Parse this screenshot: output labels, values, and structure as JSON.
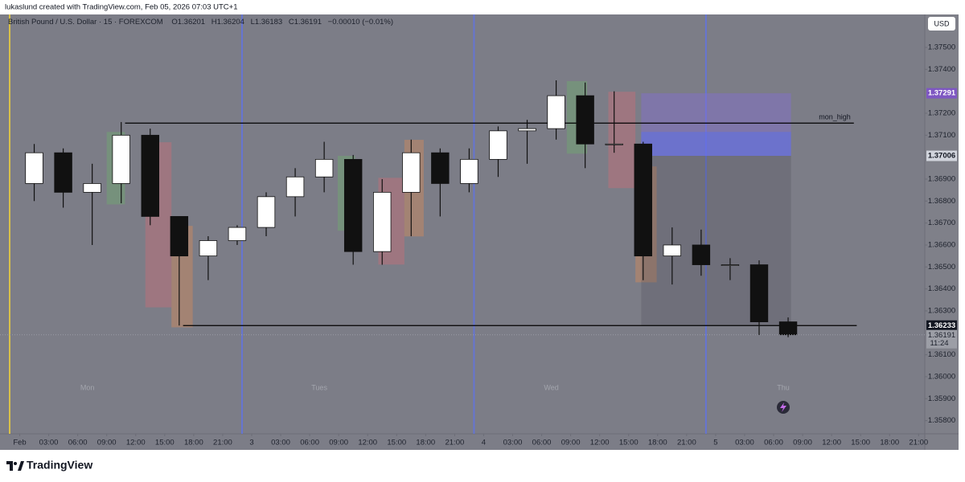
{
  "header": {
    "credit": "lukaslund created with TradingView.com, Feb 05, 2026 07:03 UTC+1"
  },
  "footer": {
    "brand": "TradingView"
  },
  "chart_data": {
    "type": "candlestick",
    "title": "British Pound / U.S. Dollar · 15 · FOREXCOM",
    "legend_values": [
      "O1.36201",
      "H1.36204",
      "L1.36183",
      "C1.36191",
      "−0.00010 (−0.01%)"
    ],
    "currency": "USD",
    "x": [
      0,
      3,
      6,
      9,
      12,
      15,
      18,
      21,
      24,
      27,
      30,
      33,
      36,
      39,
      42,
      45,
      48,
      51,
      54,
      57,
      60,
      63,
      66,
      69,
      72,
      75,
      78
    ],
    "open": [
      1.3688,
      1.3702,
      1.3684,
      1.3688,
      1.371,
      1.3673,
      1.3655,
      1.3662,
      1.3668,
      1.3682,
      1.3691,
      1.3699,
      1.3657,
      1.3684,
      1.3702,
      1.3688,
      1.3699,
      1.3712,
      1.3713,
      1.3728,
      1.3706,
      1.3706,
      1.3655,
      1.366,
      1.3651,
      1.3651,
      1.3625
    ],
    "high": [
      1.3706,
      1.3704,
      1.3697,
      1.3716,
      1.3713,
      1.3673,
      1.3664,
      1.3669,
      1.3684,
      1.3695,
      1.3707,
      1.3701,
      1.369,
      1.3708,
      1.3704,
      1.3704,
      1.3714,
      1.3717,
      1.3735,
      1.3734,
      1.373,
      1.3707,
      1.3668,
      1.3667,
      1.3654,
      1.3653,
      1.3627
    ],
    "low": [
      1.368,
      1.3677,
      1.366,
      1.3679,
      1.3669,
      1.36233,
      1.3644,
      1.366,
      1.3664,
      1.3673,
      1.3684,
      1.3651,
      1.3651,
      1.3664,
      1.3673,
      1.3684,
      1.3691,
      1.3697,
      1.3708,
      1.3695,
      1.3702,
      1.3644,
      1.3642,
      1.3646,
      1.3644,
      1.3619,
      1.3618
    ],
    "close": [
      1.3702,
      1.3684,
      1.3688,
      1.371,
      1.3673,
      1.3655,
      1.3662,
      1.3668,
      1.3682,
      1.3691,
      1.3699,
      1.3657,
      1.3684,
      1.3702,
      1.3688,
      1.3699,
      1.3712,
      1.3713,
      1.3728,
      1.3706,
      1.3706,
      1.3655,
      1.366,
      1.3651,
      1.3651,
      1.3625,
      1.36191
    ],
    "up_color": "#ffffff",
    "down_color": "#111111",
    "xlim": [
      -2.04,
      93.64
    ],
    "ylim": [
      1.3574,
      1.3765
    ],
    "xticks": [
      {
        "value": 0,
        "label": "Feb"
      },
      {
        "value": 3,
        "label": "03:00"
      },
      {
        "value": 6,
        "label": "06:00"
      },
      {
        "value": 9,
        "label": "09:00"
      },
      {
        "value": 12,
        "label": "12:00"
      },
      {
        "value": 15,
        "label": "15:00"
      },
      {
        "value": 18,
        "label": "18:00"
      },
      {
        "value": 21,
        "label": "21:00"
      },
      {
        "value": 24,
        "label": "3"
      },
      {
        "value": 27,
        "label": "03:00"
      },
      {
        "value": 30,
        "label": "06:00"
      },
      {
        "value": 33,
        "label": "09:00"
      },
      {
        "value": 36,
        "label": "12:00"
      },
      {
        "value": 39,
        "label": "15:00"
      },
      {
        "value": 42,
        "label": "18:00"
      },
      {
        "value": 45,
        "label": "21:00"
      },
      {
        "value": 48,
        "label": "4"
      },
      {
        "value": 51,
        "label": "03:00"
      },
      {
        "value": 54,
        "label": "06:00"
      },
      {
        "value": 57,
        "label": "09:00"
      },
      {
        "value": 60,
        "label": "12:00"
      },
      {
        "value": 63,
        "label": "15:00"
      },
      {
        "value": 66,
        "label": "18:00"
      },
      {
        "value": 69,
        "label": "21:00"
      },
      {
        "value": 72,
        "label": "5"
      },
      {
        "value": 75,
        "label": "03:00"
      },
      {
        "value": 78,
        "label": "06:00"
      },
      {
        "value": 81,
        "label": "09:00"
      },
      {
        "value": 84,
        "label": "12:00"
      },
      {
        "value": 87,
        "label": "15:00"
      },
      {
        "value": 90,
        "label": "18:00"
      },
      {
        "value": 93,
        "label": "21:00"
      }
    ],
    "yticks": [
      {
        "value": 1.375,
        "label": "1.37500"
      },
      {
        "value": 1.374,
        "label": "1.37400"
      },
      {
        "value": 1.372,
        "label": "1.37200"
      },
      {
        "value": 1.371,
        "label": "1.37100"
      },
      {
        "value": 1.369,
        "label": "1.36900"
      },
      {
        "value": 1.368,
        "label": "1.36800"
      },
      {
        "value": 1.367,
        "label": "1.36700"
      },
      {
        "value": 1.366,
        "label": "1.36600"
      },
      {
        "value": 1.365,
        "label": "1.36500"
      },
      {
        "value": 1.364,
        "label": "1.36400"
      },
      {
        "value": 1.363,
        "label": "1.36300"
      },
      {
        "value": 1.361,
        "label": "1.36100"
      },
      {
        "value": 1.36,
        "label": "1.36000"
      },
      {
        "value": 1.359,
        "label": "1.35900"
      },
      {
        "value": 1.358,
        "label": "1.35800"
      }
    ],
    "day_labels": [
      {
        "label": "Mon",
        "x": 7
      },
      {
        "label": "Tues",
        "x": 31
      },
      {
        "label": "Wed",
        "x": 55
      },
      {
        "label": "Thu",
        "x": 79
      }
    ],
    "session_lines": [
      23,
      47,
      71
    ],
    "zones": [
      {
        "x": [
          9.0,
          10.9
        ],
        "y": [
          1.37115,
          1.36785
        ],
        "color": "rgba(110,170,110,0.45)"
      },
      {
        "x": [
          13.0,
          15.7
        ],
        "y": [
          1.37068,
          1.36316
        ],
        "color": "rgba(200,110,120,0.45)"
      },
      {
        "x": [
          15.7,
          17.9
        ],
        "y": [
          1.36687,
          1.36225
        ],
        "color": "rgba(210,140,90,0.45)"
      },
      {
        "x": [
          32.9,
          34.7
        ],
        "y": [
          1.37006,
          1.36665
        ],
        "color": "rgba(110,170,110,0.45)"
      },
      {
        "x": [
          37.1,
          39.8
        ],
        "y": [
          1.36906,
          1.36511
        ],
        "color": "rgba(200,110,120,0.45)"
      },
      {
        "x": [
          39.8,
          41.8
        ],
        "y": [
          1.37079,
          1.36639
        ],
        "color": "rgba(210,140,90,0.45)"
      },
      {
        "x": [
          56.6,
          58.7
        ],
        "y": [
          1.37346,
          1.37016
        ],
        "color": "rgba(110,170,110,0.45)"
      },
      {
        "x": [
          60.9,
          63.7
        ],
        "y": [
          1.37298,
          1.36859
        ],
        "color": "rgba(200,110,120,0.45)"
      },
      {
        "x": [
          63.7,
          65.9
        ],
        "y": [
          1.36958,
          1.3643
        ],
        "color": "rgba(210,140,90,0.45)"
      },
      {
        "x": [
          64.3,
          79.8
        ],
        "y": [
          1.37291,
          1.37006
        ],
        "color": "rgba(130,110,210,0.45)"
      },
      {
        "x": [
          64.3,
          79.8
        ],
        "y": [
          1.37115,
          1.37006
        ],
        "color": "rgba(90,110,240,0.5)"
      },
      {
        "x": [
          64.3,
          79.8
        ],
        "y": [
          1.37006,
          1.36233
        ],
        "color": "rgba(70,72,85,0.25)"
      }
    ],
    "levels": [
      {
        "label": "mon_high",
        "value": 1.37155,
        "x": [
          10.9,
          86.3
        ]
      },
      {
        "value": 1.36233,
        "x": [
          16.9,
          86.6
        ]
      }
    ],
    "price_labels": [
      {
        "value": 1.37291,
        "label": "1.37291",
        "color": "#7e57c2"
      },
      {
        "value": 1.37006,
        "label": "1.37006",
        "color": "#d1d4dc"
      },
      {
        "value": 1.36233,
        "label": "1.36233",
        "color": "#131722"
      }
    ],
    "last_price": {
      "value": 1.36191,
      "label": "1.36191",
      "countdown": "11:24"
    }
  }
}
